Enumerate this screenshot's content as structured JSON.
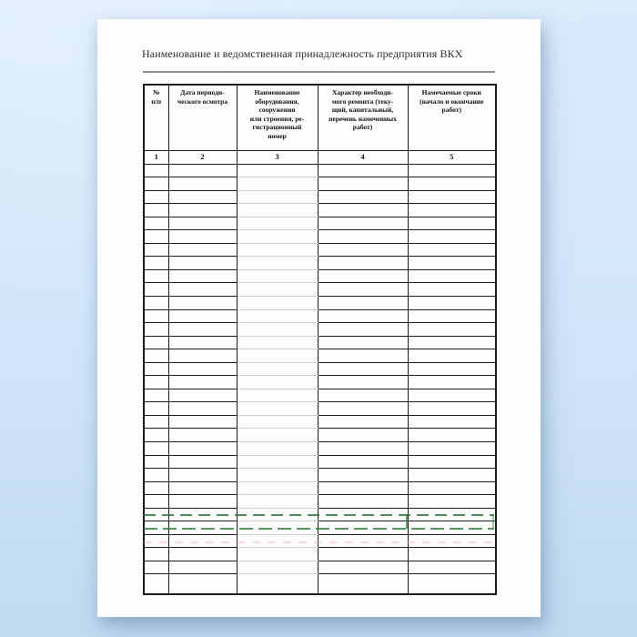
{
  "document": {
    "title": "Наименование и ведомственная принадлежность предприятия ВКХ"
  },
  "table": {
    "columns": [
      {
        "number": "1",
        "header": "№\nп/п"
      },
      {
        "number": "2",
        "header": "Дата периоди-\nческого осмотра"
      },
      {
        "number": "3",
        "header": "Наименование\nоборудования,\nсооружения\nили строения, ре-\nгистрационный\nномер"
      },
      {
        "number": "4",
        "header": "Характер необходи-\nмого ремонта (теку-\nщий, капитальный,\nперечень намеченных\nработ)"
      },
      {
        "number": "5",
        "header": "Намечаемые сроки\n(начало и окончание\nработ)"
      }
    ],
    "empty_row_count": 32,
    "light_rule_column_index": 2
  },
  "colors": {
    "background_top": "#d9ebfc",
    "background_bottom": "#c0daf1",
    "page_white": "#fdfdfd",
    "table_border": "#1c1c1c",
    "light_row_line": "#cfcfcf",
    "divider_gray": "#8d8d8d",
    "title_ink": "#2f2f2f",
    "watermark_green": "#2e7d3c",
    "watermark_pink": "#e0a8b4"
  }
}
